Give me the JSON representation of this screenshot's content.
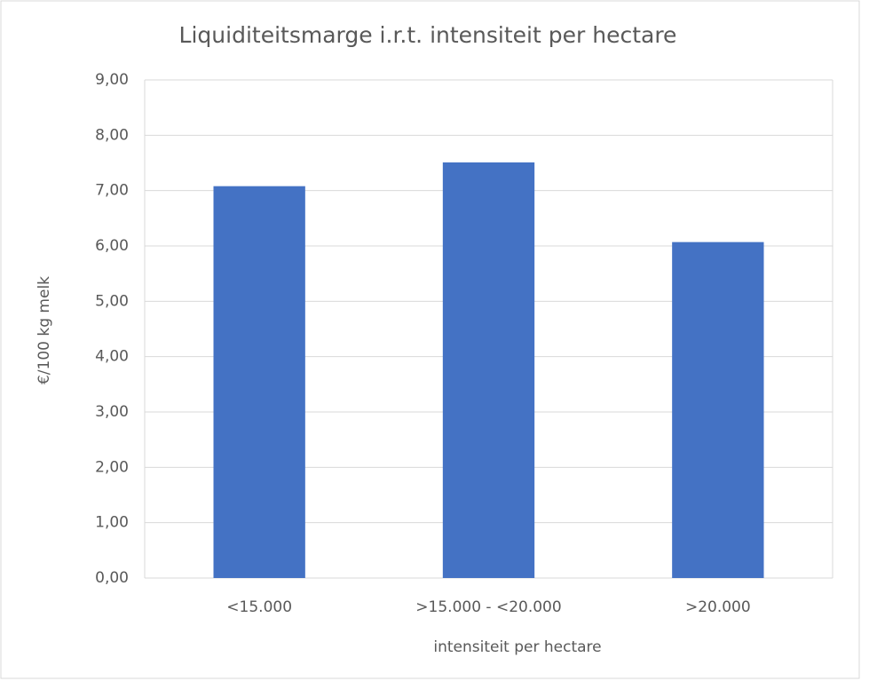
{
  "chart_data": {
    "type": "bar",
    "title": "Liquiditeitsmarge i.r.t. intensiteit per hectare",
    "x_label": "intensiteit per hectare",
    "y_label": "€/100 kg melk",
    "categories": [
      "<15.000",
      ">15.000 - <20.000",
      ">20.000"
    ],
    "values": [
      7.08,
      7.51,
      6.07
    ],
    "color": "#4472c4",
    "ylim": [
      0,
      9
    ],
    "yticks": [
      {
        "value": 0,
        "label": "0,00"
      },
      {
        "value": 1,
        "label": "1,00"
      },
      {
        "value": 2,
        "label": "2,00"
      },
      {
        "value": 3,
        "label": "3,00"
      },
      {
        "value": 4,
        "label": "4,00"
      },
      {
        "value": 5,
        "label": "5,00"
      },
      {
        "value": 6,
        "label": "6,00"
      },
      {
        "value": 7,
        "label": "7,00"
      },
      {
        "value": 8,
        "label": "8,00"
      },
      {
        "value": 9,
        "label": "9,00"
      }
    ],
    "grid": true
  }
}
